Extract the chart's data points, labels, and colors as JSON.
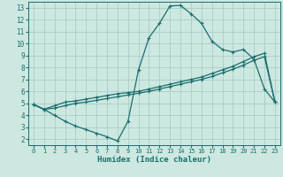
{
  "title": "",
  "xlabel": "Humidex (Indice chaleur)",
  "background_color": "#cce8e0",
  "grid_color": "#aacccc",
  "line_color": "#1a6e6e",
  "xlim": [
    -0.5,
    23.5
  ],
  "ylim": [
    1.5,
    13.5
  ],
  "xticks": [
    0,
    1,
    2,
    3,
    4,
    5,
    6,
    7,
    8,
    9,
    10,
    11,
    12,
    13,
    14,
    15,
    16,
    17,
    18,
    19,
    20,
    21,
    22,
    23
  ],
  "yticks": [
    2,
    3,
    4,
    5,
    6,
    7,
    8,
    9,
    10,
    11,
    12,
    13
  ],
  "curve1_x": [
    0,
    1,
    2,
    3,
    4,
    5,
    6,
    7,
    8,
    9,
    10,
    11,
    12,
    13,
    14,
    15,
    16,
    17,
    18,
    19,
    20,
    21,
    22,
    23
  ],
  "curve1_y": [
    4.9,
    4.5,
    4.0,
    3.5,
    3.1,
    2.8,
    2.5,
    2.2,
    1.85,
    3.5,
    7.8,
    10.5,
    11.7,
    13.15,
    13.2,
    12.5,
    11.7,
    10.2,
    9.5,
    9.3,
    9.5,
    8.7,
    6.2,
    5.1
  ],
  "curve2_x": [
    0,
    1,
    2,
    3,
    4,
    5,
    6,
    7,
    8,
    9,
    10,
    11,
    12,
    13,
    14,
    15,
    16,
    17,
    18,
    19,
    20,
    21,
    22,
    23
  ],
  "curve2_y": [
    4.9,
    4.5,
    4.8,
    5.1,
    5.2,
    5.35,
    5.5,
    5.65,
    5.8,
    5.9,
    6.0,
    6.2,
    6.4,
    6.6,
    6.8,
    7.0,
    7.2,
    7.5,
    7.8,
    8.1,
    8.5,
    8.9,
    9.2,
    5.1
  ],
  "curve3_x": [
    0,
    1,
    2,
    3,
    4,
    5,
    6,
    7,
    8,
    9,
    10,
    11,
    12,
    13,
    14,
    15,
    16,
    17,
    18,
    19,
    20,
    21,
    22,
    23
  ],
  "curve3_y": [
    4.9,
    4.5,
    4.6,
    4.8,
    5.0,
    5.1,
    5.25,
    5.4,
    5.55,
    5.7,
    5.85,
    6.0,
    6.2,
    6.4,
    6.6,
    6.8,
    7.0,
    7.25,
    7.55,
    7.85,
    8.2,
    8.6,
    8.9,
    5.1
  ]
}
